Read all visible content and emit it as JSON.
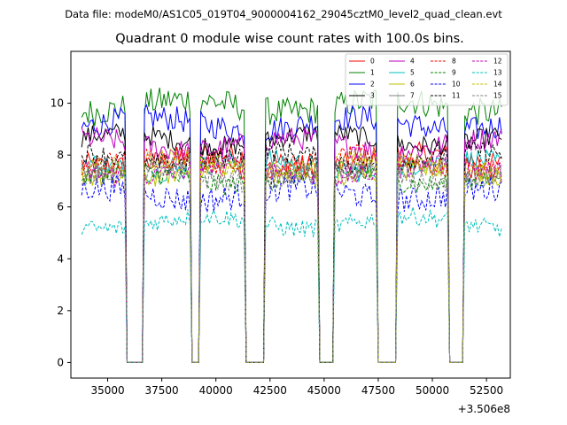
{
  "chart_data": {
    "type": "line",
    "header": "Data file: modeM0/AS1C05_019T04_9000004162_29045cztM0_level2_quad_clean.evt",
    "title": "Quadrant 0 module wise count rates with 100.0s bins.",
    "xlabel": "",
    "ylabel": "",
    "x_offset_label": "+3.506e8",
    "xlim": [
      33300,
      53600
    ],
    "ylim": [
      -0.6,
      12.0
    ],
    "xticks": [
      35000,
      37500,
      40000,
      42500,
      45000,
      47500,
      50000,
      52500
    ],
    "xtick_labels": [
      "35000",
      "37500",
      "40000",
      "42500",
      "45000",
      "47500",
      "50000",
      "52500"
    ],
    "yticks": [
      0,
      2,
      4,
      6,
      8,
      10
    ],
    "ytick_labels": [
      "0",
      "2",
      "4",
      "6",
      "8",
      "10"
    ],
    "x_start": 33800,
    "x_step": 100,
    "orbit_segments": [
      {
        "start": 33800,
        "end": 35800
      },
      {
        "start": 36700,
        "end": 38800
      },
      {
        "start": 39300,
        "end": 41300
      },
      {
        "start": 42300,
        "end": 44700
      },
      {
        "start": 45500,
        "end": 47400
      },
      {
        "start": 48400,
        "end": 50700
      },
      {
        "start": 51500,
        "end": 53200
      }
    ],
    "gap_value": 0.0,
    "series": [
      {
        "name": "0",
        "color": "#ff0000",
        "dash": "solid",
        "mean": 7.8,
        "noise": 0.45
      },
      {
        "name": "1",
        "color": "#008000",
        "dash": "solid",
        "mean": 9.9,
        "noise": 0.55
      },
      {
        "name": "2",
        "color": "#0000ff",
        "dash": "solid",
        "mean": 9.2,
        "noise": 0.5
      },
      {
        "name": "3",
        "color": "#000000",
        "dash": "solid",
        "mean": 8.6,
        "noise": 0.4
      },
      {
        "name": "4",
        "color": "#bf00bf",
        "dash": "solid",
        "mean": 8.4,
        "noise": 0.45
      },
      {
        "name": "5",
        "color": "#00bfbf",
        "dash": "solid",
        "mean": 7.6,
        "noise": 0.4
      },
      {
        "name": "6",
        "color": "#bfbf00",
        "dash": "solid",
        "mean": 7.3,
        "noise": 0.4
      },
      {
        "name": "7",
        "color": "#808080",
        "dash": "solid",
        "mean": 7.5,
        "noise": 0.4
      },
      {
        "name": "8",
        "color": "#ff0000",
        "dash": "dashed",
        "mean": 7.7,
        "noise": 0.45
      },
      {
        "name": "9",
        "color": "#008000",
        "dash": "dashed",
        "mean": 7.1,
        "noise": 0.4
      },
      {
        "name": "10",
        "color": "#0000ff",
        "dash": "dashed",
        "mean": 6.5,
        "noise": 0.5
      },
      {
        "name": "11",
        "color": "#000000",
        "dash": "dashed",
        "mean": 7.9,
        "noise": 0.4
      },
      {
        "name": "12",
        "color": "#bf00bf",
        "dash": "dashed",
        "mean": 7.4,
        "noise": 0.4
      },
      {
        "name": "13",
        "color": "#00bfbf",
        "dash": "dashed",
        "mean": 5.4,
        "noise": 0.35
      },
      {
        "name": "14",
        "color": "#bfbf00",
        "dash": "dashed",
        "mean": 7.6,
        "noise": 0.4
      },
      {
        "name": "15",
        "color": "#808080",
        "dash": "dashed",
        "mean": 7.2,
        "noise": 0.4
      }
    ],
    "legend_location": "top-right",
    "grid": false
  }
}
